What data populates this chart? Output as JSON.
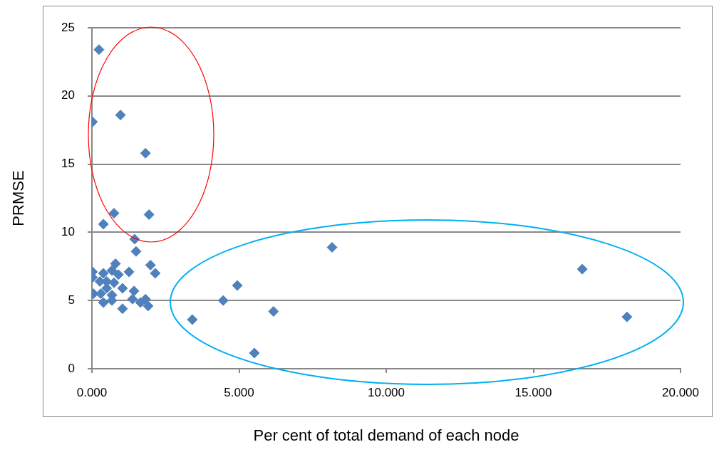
{
  "chart_data": {
    "type": "scatter",
    "xlabel": "Per cent of total demand of each node",
    "ylabel": "PRMSE",
    "xlim": [
      0,
      20
    ],
    "xticks": [
      {
        "value": 0,
        "label": "0.000"
      },
      {
        "value": 5,
        "label": "5.000"
      },
      {
        "value": 10,
        "label": "10.000"
      },
      {
        "value": 15,
        "label": "15.000"
      },
      {
        "value": 20,
        "label": "20.000"
      }
    ],
    "ylim": [
      0,
      25
    ],
    "yticks": [
      0,
      5,
      10,
      15,
      20,
      25
    ],
    "grid": "y",
    "legend": false,
    "marker": "diamond",
    "series": [
      {
        "color": "#4f81bd",
        "x": [
          0.24,
          0.02,
          0.97,
          1.82,
          0.75,
          1.94,
          0.39,
          1.45,
          1.5,
          1.99,
          2.15,
          0.8,
          0.02,
          0.02,
          0.39,
          0.68,
          0.9,
          1.26,
          0.27,
          0.5,
          0.75,
          0.5,
          1.04,
          0.05,
          0.3,
          0.68,
          1.43,
          1.38,
          0.39,
          0.68,
          1.04,
          1.65,
          1.82,
          1.91,
          3.41,
          4.46,
          4.94,
          5.52,
          6.17,
          8.16,
          16.66,
          18.18
        ],
        "values": [
          23.4,
          18.1,
          18.6,
          15.8,
          11.4,
          11.3,
          10.6,
          9.5,
          8.6,
          7.6,
          7.0,
          7.7,
          7.1,
          6.7,
          7.0,
          7.2,
          6.9,
          7.1,
          6.4,
          6.4,
          6.3,
          5.9,
          5.9,
          5.5,
          5.5,
          5.4,
          5.7,
          5.1,
          4.85,
          5.0,
          4.4,
          4.85,
          5.1,
          4.6,
          3.6,
          5.0,
          6.1,
          1.15,
          4.2,
          8.9,
          7.3,
          3.8
        ]
      }
    ]
  }
}
